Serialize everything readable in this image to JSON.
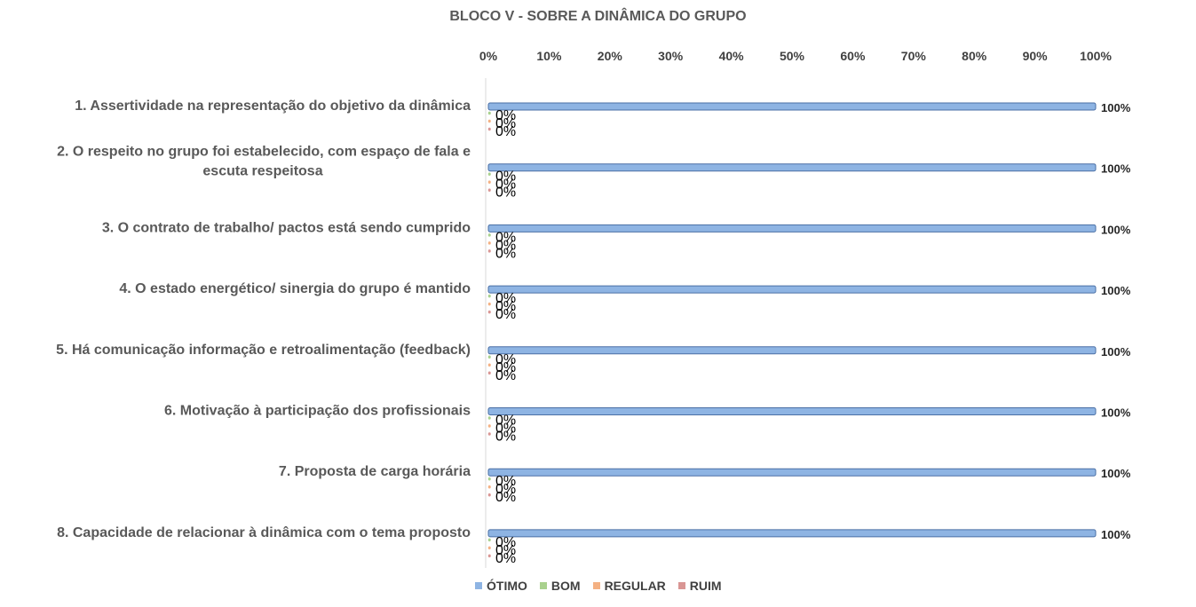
{
  "chart_data": {
    "type": "bar",
    "orientation": "horizontal",
    "title": "BLOCO V - SOBRE A DINÂMICA DO GRUPO",
    "categories": [
      "1. Assertividade na representação do objetivo da dinâmica",
      "2. O respeito no grupo foi estabelecido, com espaço de fala e escuta respeitosa",
      "3. O contrato de trabalho/ pactos está sendo cumprido",
      "4. O estado energético/ sinergia do grupo é mantido",
      "5. Há comunicação informação e retroalimentação (feedback)",
      "6. Motivação à participação dos profissionais",
      "7. Proposta de carga horária",
      "8. Capacidade de relacionar à dinâmica com o tema proposto"
    ],
    "category_lines": [
      [
        "1. Assertividade na representação do objetivo da dinâmica"
      ],
      [
        "2. O respeito no grupo foi estabelecido, com espaço de fala e",
        "escuta respeitosa"
      ],
      [
        "3. O contrato de trabalho/ pactos está sendo cumprido"
      ],
      [
        "4. O estado energético/ sinergia do grupo é mantido"
      ],
      [
        "5. Há comunicação informação e retroalimentação (feedback)"
      ],
      [
        "6. Motivação à participação dos profissionais"
      ],
      [
        "7. Proposta de carga horária"
      ],
      [
        "8. Capacidade de relacionar à dinâmica com o tema proposto"
      ]
    ],
    "series": [
      {
        "name": "ÓTIMO",
        "color": "#8eb4e3",
        "values": [
          100,
          100,
          100,
          100,
          100,
          100,
          100,
          100
        ]
      },
      {
        "name": "BOM",
        "color": "#a9d18e",
        "values": [
          0,
          0,
          0,
          0,
          0,
          0,
          0,
          0
        ]
      },
      {
        "name": "REGULAR",
        "color": "#f4b183",
        "values": [
          0,
          0,
          0,
          0,
          0,
          0,
          0,
          0
        ]
      },
      {
        "name": "RUIM",
        "color": "#d99694",
        "values": [
          0,
          0,
          0,
          0,
          0,
          0,
          0,
          0
        ]
      }
    ],
    "value_suffix": "%",
    "xlim": [
      0,
      100
    ],
    "x_ticks": [
      "0%",
      "10%",
      "20%",
      "30%",
      "40%",
      "50%",
      "60%",
      "70%",
      "80%",
      "90%",
      "100%"
    ],
    "x_axis_position": "top",
    "grid": false,
    "legend_position": "bottom"
  }
}
